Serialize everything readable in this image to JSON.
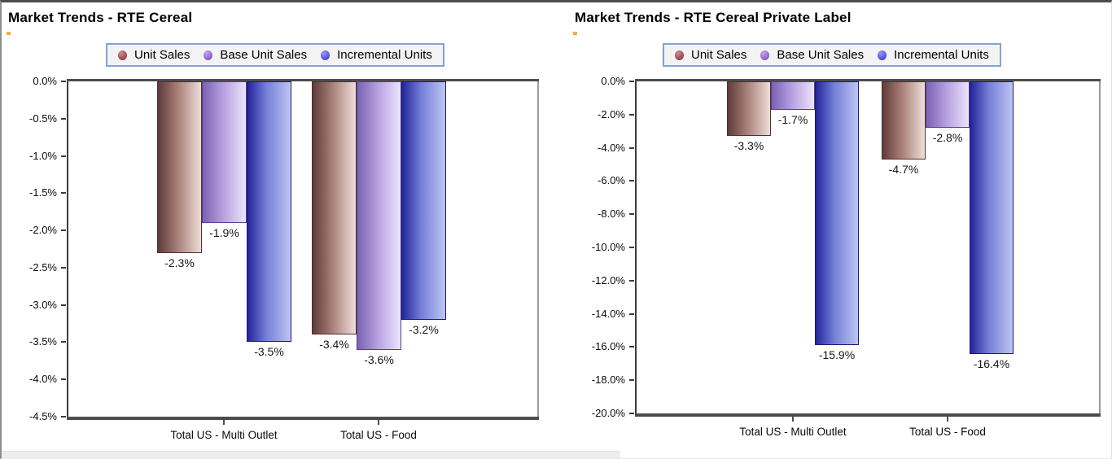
{
  "colors": {
    "series": [
      {
        "name": "Unit Sales",
        "dot": "#9a454c",
        "dot_light": "#c98d8d",
        "gradient": [
          "#5e3b3a",
          "#a87e78",
          "#eedfd8"
        ],
        "border": "#50302f"
      },
      {
        "name": "Base Unit Sales",
        "dot": "#8a5fc8",
        "dot_light": "#c2a4ec",
        "gradient": [
          "#7a61b4",
          "#b49dde",
          "#ece4fb"
        ],
        "border": "#54418f"
      },
      {
        "name": "Incremental Units",
        "dot": "#4b4be0",
        "dot_light": "#9a9af2",
        "gradient": [
          "#23249c",
          "#7681d8",
          "#bdc5f2"
        ],
        "border": "#1a1b72"
      }
    ],
    "legend_border": "#7fa3d6",
    "legend_bg": "#f3f3f3",
    "axis_dark": "#4c4c4c",
    "axis_left": "#3c3c3c",
    "axis_right": "#9a9a9a"
  },
  "chart_data": [
    {
      "type": "bar",
      "title": "Market Trends - RTE Cereal",
      "categories": [
        "Total US - Multi Outlet",
        "Total US - Food"
      ],
      "series": [
        {
          "name": "Unit Sales",
          "values": [
            -2.3,
            -3.4
          ],
          "labels": [
            "-2.3%",
            "-3.4%"
          ]
        },
        {
          "name": "Base Unit Sales",
          "values": [
            -1.9,
            -3.6
          ],
          "labels": [
            "-1.9%",
            "-3.6%"
          ]
        },
        {
          "name": "Incremental Units",
          "values": [
            -3.5,
            -3.2
          ],
          "labels": [
            "-3.5%",
            "-3.2%"
          ]
        }
      ],
      "ylim": [
        0,
        -4.5
      ],
      "ytick_step": -0.5,
      "yticks": [
        "0.0%",
        "-0.5%",
        "-1.0%",
        "-1.5%",
        "-2.0%",
        "-2.5%",
        "-3.0%",
        "-3.5%",
        "-4.0%",
        "-4.5%"
      ],
      "legend_position": "top",
      "grid": false,
      "value_labels": "below-bar"
    },
    {
      "type": "bar",
      "title": "Market Trends - RTE Cereal Private Label",
      "categories": [
        "Total US - Multi Outlet",
        "Total US - Food"
      ],
      "series": [
        {
          "name": "Unit Sales",
          "values": [
            -3.3,
            -4.7
          ],
          "labels": [
            "-3.3%",
            "-4.7%"
          ]
        },
        {
          "name": "Base Unit Sales",
          "values": [
            -1.7,
            -2.8
          ],
          "labels": [
            "-1.7%",
            "-2.8%"
          ]
        },
        {
          "name": "Incremental Units",
          "values": [
            -15.9,
            -16.4
          ],
          "labels": [
            "-15.9%",
            "-16.4%"
          ]
        }
      ],
      "ylim": [
        0,
        -20.0
      ],
      "ytick_step": -2.0,
      "yticks": [
        "0.0%",
        "-2.0%",
        "-4.0%",
        "-6.0%",
        "-8.0%",
        "-10.0%",
        "-12.0%",
        "-14.0%",
        "-16.0%",
        "-18.0%",
        "-20.0%"
      ],
      "legend_position": "top",
      "grid": false,
      "value_labels": "below-bar"
    }
  ]
}
